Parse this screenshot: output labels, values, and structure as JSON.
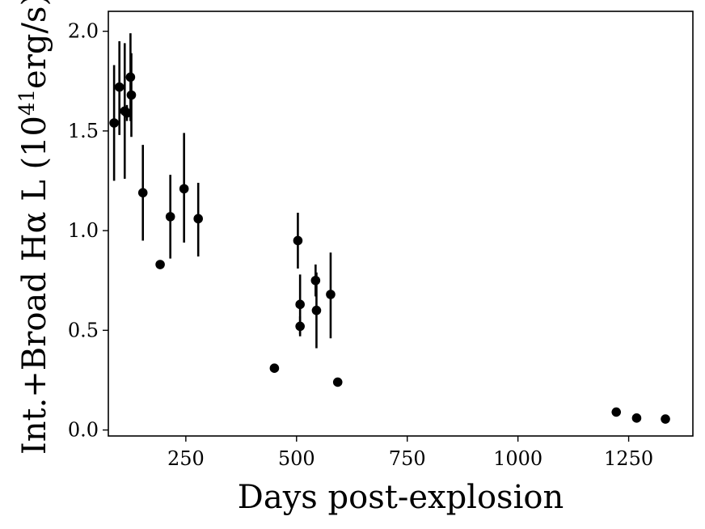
{
  "chart_data": {
    "type": "scatter",
    "title": "",
    "xlabel": "Days post-explosion",
    "ylabel": {
      "prefix": "Int.+Broad Hα L (10",
      "superscript": "41",
      "suffix": "erg/s)"
    },
    "xlim": [
      75,
      1395
    ],
    "ylim": [
      -0.03,
      2.1
    ],
    "xticks": [
      250,
      500,
      750,
      1000,
      1250
    ],
    "xtick_labels": [
      "250",
      "500",
      "750",
      "1000",
      "1250"
    ],
    "yticks": [
      0.0,
      0.5,
      1.0,
      1.5,
      2.0
    ],
    "ytick_labels": [
      "0.0",
      "0.5",
      "1.0",
      "1.5",
      "2.0"
    ],
    "grid": false,
    "legend": null,
    "color": "#000000",
    "series": [
      {
        "points": [
          {
            "x": 88,
            "y": 1.54,
            "yerr_low": 1.25,
            "yerr_high": 1.83
          },
          {
            "x": 100,
            "y": 1.72,
            "yerr_low": 1.48,
            "yerr_high": 1.95
          },
          {
            "x": 112,
            "y": 1.6,
            "yerr_low": 1.26,
            "yerr_high": 1.94
          },
          {
            "x": 117,
            "y": 1.59,
            "yerr_low": 1.55,
            "yerr_high": 1.63
          },
          {
            "x": 125,
            "y": 1.77,
            "yerr_low": 1.55,
            "yerr_high": 1.99
          },
          {
            "x": 127,
            "y": 1.68,
            "yerr_low": 1.47,
            "yerr_high": 1.89
          },
          {
            "x": 153,
            "y": 1.19,
            "yerr_low": 0.95,
            "yerr_high": 1.43
          },
          {
            "x": 192,
            "y": 0.83
          },
          {
            "x": 215,
            "y": 1.07,
            "yerr_low": 0.86,
            "yerr_high": 1.28
          },
          {
            "x": 246,
            "y": 1.21,
            "yerr_low": 0.94,
            "yerr_high": 1.49
          },
          {
            "x": 278,
            "y": 1.06,
            "yerr_low": 0.87,
            "yerr_high": 1.24
          },
          {
            "x": 450,
            "y": 0.31
          },
          {
            "x": 503,
            "y": 0.95,
            "yerr_low": 0.81,
            "yerr_high": 1.09
          },
          {
            "x": 508,
            "y": 0.63,
            "yerr_low": 0.48,
            "yerr_high": 0.78
          },
          {
            "x": 508,
            "y": 0.52,
            "yerr_low": 0.47,
            "yerr_high": 0.57
          },
          {
            "x": 543,
            "y": 0.75,
            "yerr_low": 0.67,
            "yerr_high": 0.83
          },
          {
            "x": 545,
            "y": 0.6,
            "yerr_low": 0.41,
            "yerr_high": 0.79
          },
          {
            "x": 577,
            "y": 0.68,
            "yerr_low": 0.46,
            "yerr_high": 0.89
          },
          {
            "x": 593,
            "y": 0.24
          },
          {
            "x": 1222,
            "y": 0.09
          },
          {
            "x": 1268,
            "y": 0.06
          },
          {
            "x": 1333,
            "y": 0.055
          }
        ]
      }
    ]
  }
}
